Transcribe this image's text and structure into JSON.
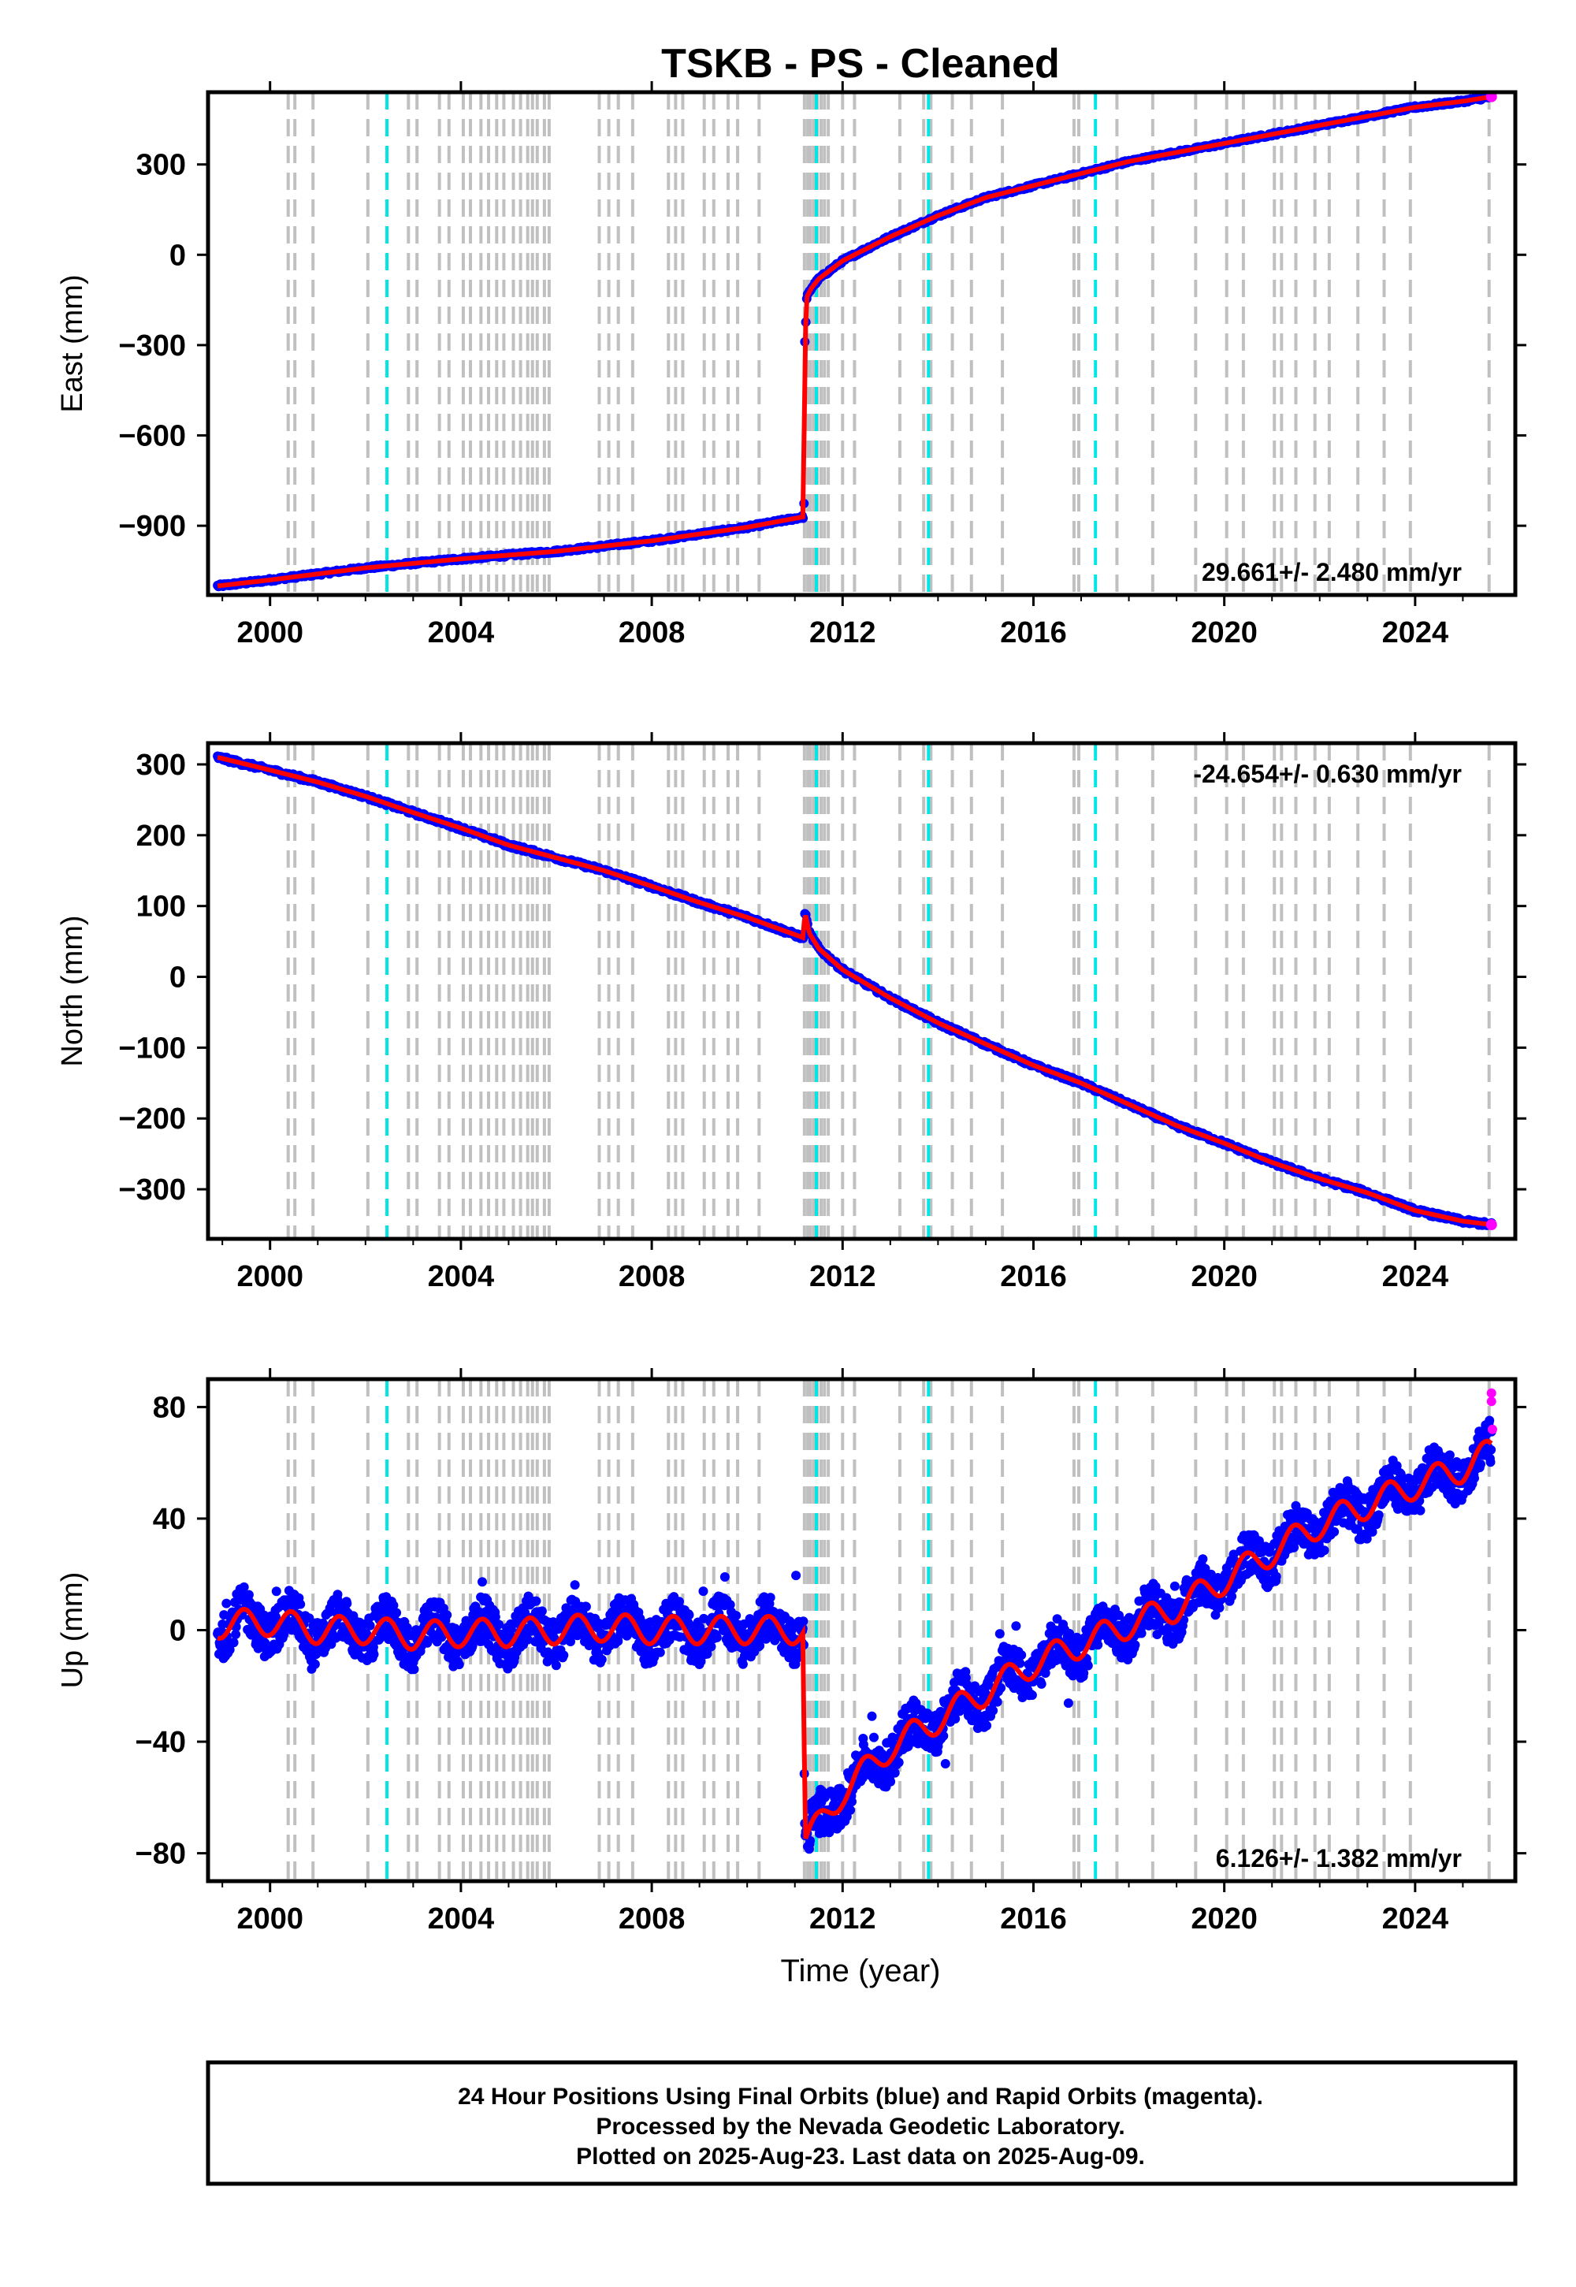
{
  "chart_data": {
    "title": "TSKB  - PS - Cleaned",
    "xlabel": "Time (year)",
    "xlim": [
      1998.7,
      2026.1
    ],
    "x_ticks": [
      2000,
      2004,
      2008,
      2012,
      2016,
      2020,
      2024
    ],
    "x_tick_labels": [
      "2000",
      "2004",
      "2008",
      "2012",
      "2016",
      "2020",
      "2024"
    ],
    "series_colors": {
      "final_orbits": "#0000ff",
      "rapid_orbits": "#ff00ff",
      "model": "#ff0000",
      "event_lines": "#c0c0c0",
      "equipment_lines": "#00e5e5"
    },
    "event_lines": [
      2000.38,
      2000.52,
      2000.9,
      2002.05,
      2002.9,
      2003.08,
      2003.55,
      2003.75,
      2004.05,
      2004.2,
      2004.42,
      2004.58,
      2004.75,
      2004.9,
      2005.1,
      2005.25,
      2005.4,
      2005.5,
      2005.6,
      2005.75,
      2005.85,
      2006.9,
      2007.1,
      2007.3,
      2007.6,
      2008.35,
      2008.5,
      2008.65,
      2009.1,
      2009.3,
      2009.6,
      2009.8,
      2010.25,
      2011.2,
      2011.27,
      2011.33,
      2011.4,
      2011.47,
      2011.55,
      2011.62,
      2011.7,
      2012.0,
      2012.25,
      2013.2,
      2013.7,
      2013.85,
      2014.3,
      2014.7,
      2015.35,
      2016.85,
      2016.95,
      2017.75,
      2018.5,
      2019.4,
      2020.05,
      2020.4,
      2021.05,
      2021.2,
      2021.5,
      2021.9,
      2022.2,
      2022.8,
      2023.35,
      2023.9,
      2025.55
    ],
    "equipment_lines": [
      2002.45,
      2011.45,
      2013.8,
      2017.3
    ],
    "panels": [
      {
        "type": "scatter",
        "ylabel": "East (mm)",
        "ylim": [
          -1130,
          540
        ],
        "y_ticks": [
          300,
          0,
          -300,
          -600,
          -900
        ],
        "y_tick_labels": [
          "300",
          "0",
          "−300",
          "−600",
          "−900"
        ],
        "rate_label": "29.661+/- 2.480 mm/yr",
        "rate_position": "bottom-right",
        "x": [
          1998.9,
          2000.0,
          2002.0,
          2004.0,
          2006.0,
          2008.0,
          2010.0,
          2011.19,
          2011.2,
          2011.25,
          2011.35,
          2011.5,
          2011.75,
          2012.0,
          2012.5,
          2013.0,
          2014.0,
          2015.0,
          2016.0,
          2017.0,
          2018.0,
          2019.0,
          2020.0,
          2021.0,
          2022.0,
          2023.0,
          2024.0,
          2025.0,
          2025.6
        ],
        "y": [
          -1100,
          -1080,
          -1040,
          -1010,
          -985,
          -950,
          -905,
          -870,
          -330,
          -140,
          -110,
          -80,
          -50,
          -20,
          20,
          60,
          130,
          190,
          230,
          270,
          310,
          340,
          370,
          400,
          430,
          460,
          490,
          510,
          525
        ]
      },
      {
        "type": "scatter",
        "ylabel": "North (mm)",
        "ylim": [
          -370,
          330
        ],
        "y_ticks": [
          300,
          200,
          100,
          0,
          -100,
          -200,
          -300
        ],
        "y_tick_labels": [
          "300",
          "200",
          "100",
          "0",
          "−100",
          "−200",
          "−300"
        ],
        "rate_label": "-24.654+/- 0.630 mm/yr",
        "rate_position": "top-right",
        "x": [
          1998.9,
          2000.0,
          2001.0,
          2002.0,
          2003.0,
          2004.0,
          2005.0,
          2006.0,
          2007.0,
          2008.0,
          2009.0,
          2010.0,
          2011.19,
          2011.2,
          2011.3,
          2011.5,
          2012.0,
          2013.0,
          2014.0,
          2015.0,
          2016.0,
          2017.0,
          2018.0,
          2019.0,
          2020.0,
          2021.0,
          2022.0,
          2023.0,
          2024.0,
          2025.0,
          2025.6
        ],
        "y": [
          310,
          292,
          275,
          255,
          232,
          210,
          186,
          168,
          150,
          128,
          105,
          84,
          55,
          95,
          62,
          40,
          10,
          -30,
          -65,
          -95,
          -125,
          -150,
          -180,
          -210,
          -235,
          -262,
          -285,
          -305,
          -330,
          -345,
          -350
        ]
      },
      {
        "type": "scatter",
        "ylabel": "Up (mm)",
        "ylim": [
          -90,
          90
        ],
        "y_ticks": [
          80,
          40,
          0,
          -40,
          -80
        ],
        "y_tick_labels": [
          "80",
          "40",
          "0",
          "−40",
          "−80"
        ],
        "rate_label": "6.126+/- 1.382 mm/yr",
        "rate_position": "bottom-right",
        "x": [
          1998.9,
          2000.0,
          2001.0,
          2002.0,
          2003.0,
          2004.0,
          2005.0,
          2006.0,
          2007.0,
          2008.0,
          2009.0,
          2010.0,
          2011.19,
          2011.2,
          2011.5,
          2012.0,
          2013.0,
          2014.0,
          2015.0,
          2016.0,
          2017.0,
          2018.0,
          2019.0,
          2020.0,
          2021.0,
          2022.0,
          2023.0,
          2024.0,
          2025.0,
          2025.6
        ],
        "y": [
          2,
          3,
          0,
          0,
          -2,
          -1,
          -1,
          0,
          1,
          0,
          0,
          0,
          0,
          -76,
          -70,
          -58,
          -42,
          -32,
          -22,
          -12,
          -5,
          2,
          8,
          18,
          28,
          38,
          45,
          52,
          58,
          64
        ],
        "rapid_orbit_points": {
          "x": [
            2025.6,
            2025.6,
            2025.62
          ],
          "y": [
            85,
            82,
            72
          ]
        }
      }
    ]
  },
  "footer": {
    "line1": "24 Hour Positions Using Final Orbits (blue) and Rapid Orbits (magenta).",
    "line2": "Processed by the Nevada Geodetic Laboratory.",
    "line3": "Plotted on 2025-Aug-23. Last data on 2025-Aug-09."
  }
}
